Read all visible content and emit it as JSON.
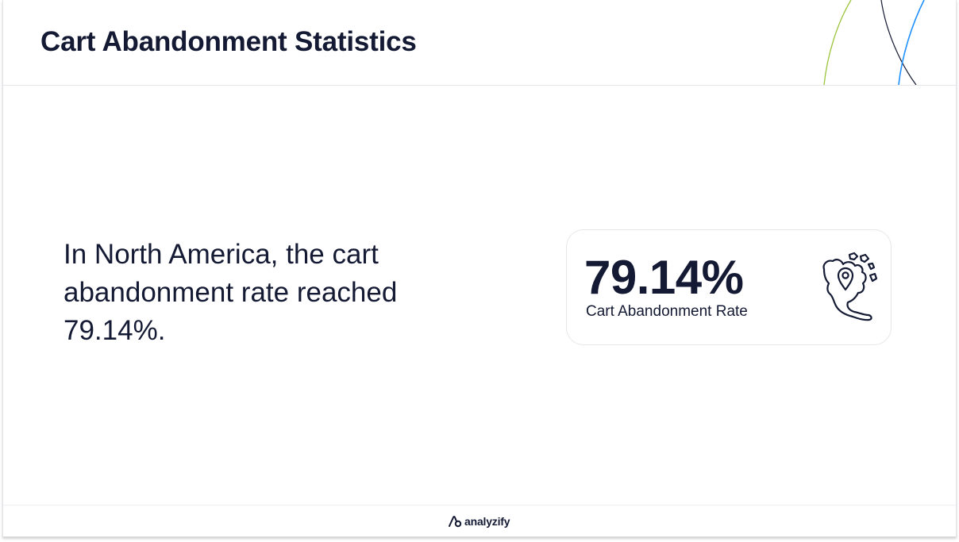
{
  "header": {
    "title": "Cart Abandonment Statistics"
  },
  "main": {
    "body_text": "In North America, the cart abandonment rate reached 79.14%."
  },
  "stat_card": {
    "value": "79.14%",
    "label": "Cart Abandonment Rate",
    "icon": "north-america-map-pin-icon"
  },
  "footer": {
    "brand_name": "analyzify",
    "brand_icon": "analyzify-logo-icon"
  },
  "colors": {
    "text": "#141a33",
    "accent_green": "#9bc53d",
    "accent_blue": "#1e90ff",
    "accent_dark": "#141a33",
    "card_border": "#e6e7ea"
  }
}
